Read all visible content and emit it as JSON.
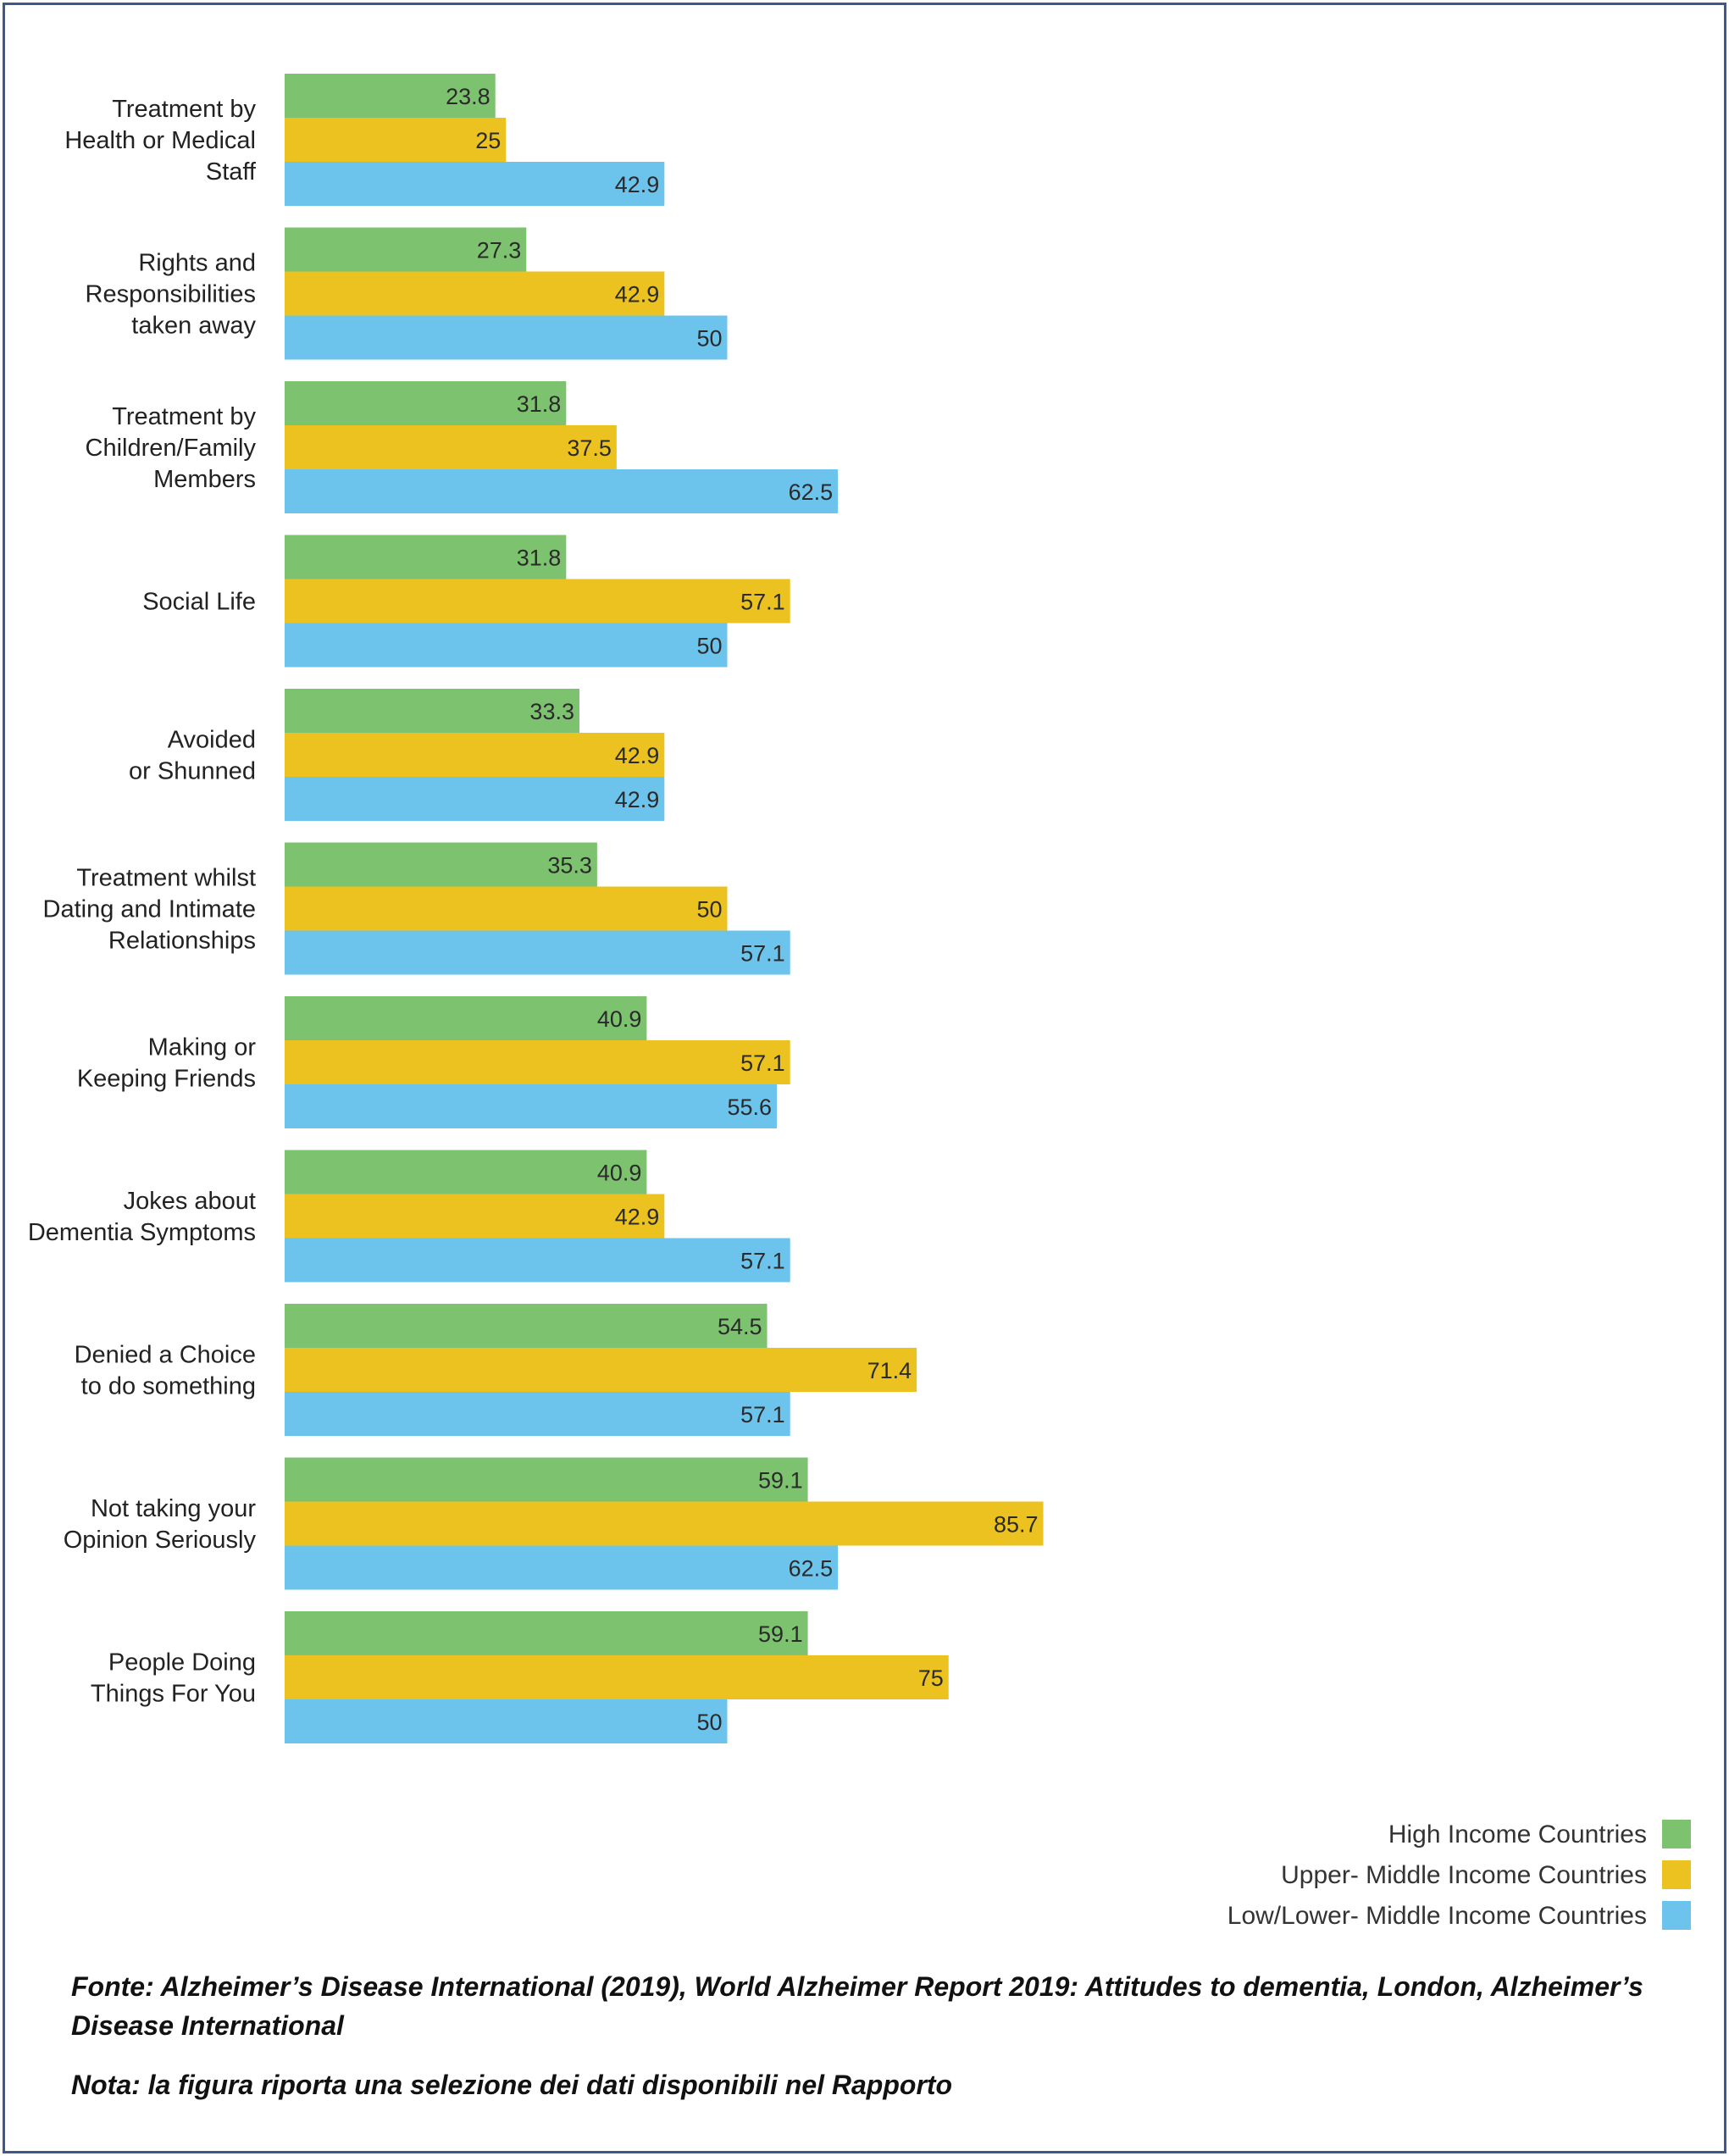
{
  "chart_data": {
    "type": "bar",
    "orientation": "horizontal",
    "categories": [
      "Treatment by Health or Medical Staff",
      "Rights and Responsibilities taken away",
      "Treatment by Children/Family Members",
      "Social Life",
      "Avoided or Shunned",
      "Treatment whilst Dating and Intimate Relationships",
      "Making or Keeping Friends",
      "Jokes about Dementia Symptoms",
      "Denied a Choice to do something",
      "Not taking your Opinion Seriously",
      "People Doing Things For You"
    ],
    "category_lines": [
      [
        "Treatment by",
        "Health or Medical",
        "Staff"
      ],
      [
        "Rights and",
        "Responsibilities",
        "taken away"
      ],
      [
        "Treatment by",
        "Children/Family",
        "Members"
      ],
      [
        "Social Life"
      ],
      [
        "Avoided",
        "or Shunned"
      ],
      [
        "Treatment whilst",
        "Dating and Intimate",
        "Relationships"
      ],
      [
        "Making or",
        "Keeping Friends"
      ],
      [
        "Jokes about",
        "Dementia Symptoms"
      ],
      [
        "Denied a Choice",
        "to do something"
      ],
      [
        "Not taking your",
        "Opinion Seriously"
      ],
      [
        "People Doing",
        "Things For You"
      ]
    ],
    "series": [
      {
        "name": "High Income Countries",
        "color": "#7dc36f",
        "values": [
          23.8,
          27.3,
          31.8,
          31.8,
          33.3,
          35.3,
          40.9,
          40.9,
          54.5,
          59.1,
          59.1
        ]
      },
      {
        "name": "Upper- Middle Income Countries",
        "color": "#ebc21f",
        "values": [
          25,
          42.9,
          37.5,
          57.1,
          42.9,
          50,
          57.1,
          42.9,
          71.4,
          85.7,
          75
        ]
      },
      {
        "name": "Low/Lower- Middle Income Countries",
        "color": "#6cc3ec",
        "values": [
          42.9,
          50,
          62.5,
          50,
          42.9,
          57.1,
          55.6,
          57.1,
          57.1,
          62.5,
          50
        ]
      }
    ],
    "xlim": [
      0,
      100
    ],
    "legend_position": "bottom-right",
    "grid": false
  },
  "caption": {
    "source": "Fonte: Alzheimer’s Disease International (2019), World Alzheimer Report 2019: Attitudes to dementia, London, Alzheimer’s Disease International",
    "note": "Nota: la figura riporta una selezione dei dati disponibili nel Rapporto"
  }
}
